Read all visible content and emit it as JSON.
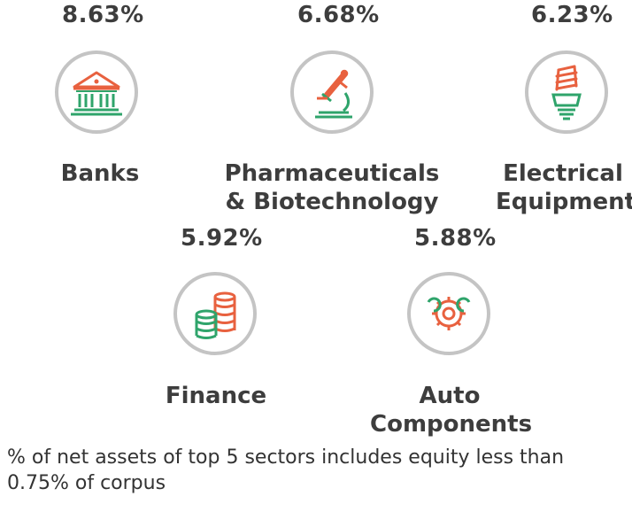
{
  "sectors": [
    {
      "percent": "8.63%",
      "label_lines": [
        "Banks"
      ],
      "icon": "bank-icon"
    },
    {
      "percent": "6.68%",
      "label_lines": [
        "Pharmaceuticals",
        "& Biotechnology"
      ],
      "icon": "microscope-icon"
    },
    {
      "percent": "6.23%",
      "label_lines": [
        "Electrical",
        "Equipment"
      ],
      "icon": "light-bulb-icon"
    },
    {
      "percent": "5.92%",
      "label_lines": [
        "Finance"
      ],
      "icon": "coins-icon"
    },
    {
      "percent": "5.88%",
      "label_lines": [
        "Auto",
        "Components"
      ],
      "icon": "gears-icon"
    }
  ],
  "footnote": "% of net assets of top 5 sectors includes equity less than 0.75% of corpus",
  "colors": {
    "accent_orange": "#e8613f",
    "accent_green": "#2fa46b",
    "ring": "#c4c4c4",
    "text": "#3d3d3d"
  }
}
